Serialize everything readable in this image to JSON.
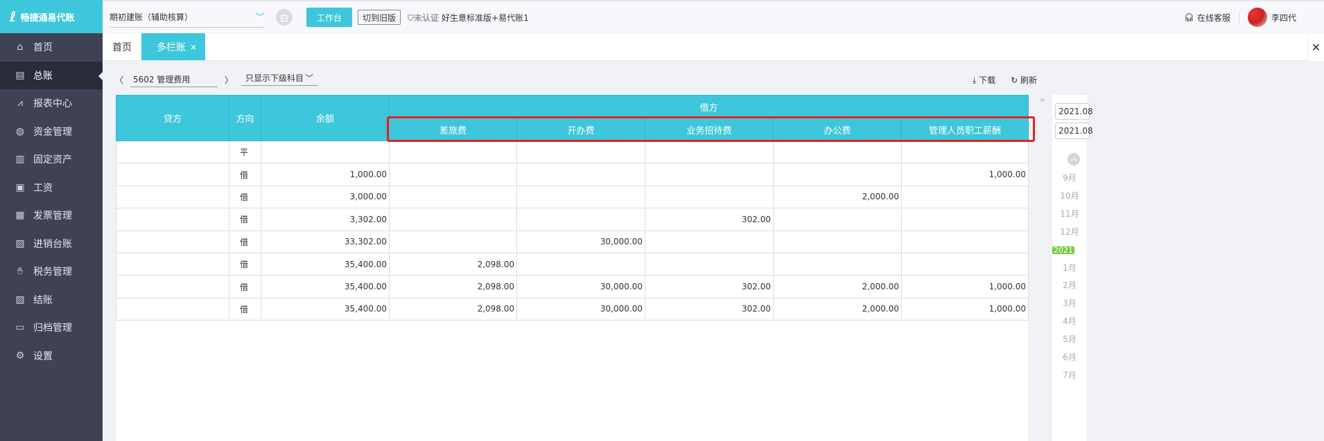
{
  "app": {
    "logo_text": "畅捷通易代账"
  },
  "sidebar": {
    "items": [
      {
        "label": "首页",
        "icon": "home-icon"
      },
      {
        "label": "总账",
        "icon": "ledger-icon",
        "active": true
      },
      {
        "label": "报表中心",
        "icon": "chart-icon"
      },
      {
        "label": "资金管理",
        "icon": "money-bag-icon"
      },
      {
        "label": "固定资产",
        "icon": "building-icon"
      },
      {
        "label": "工资",
        "icon": "salary-icon"
      },
      {
        "label": "发票管理",
        "icon": "invoice-icon"
      },
      {
        "label": "进销台账",
        "icon": "inventory-icon"
      },
      {
        "label": "税务管理",
        "icon": "tax-icon"
      },
      {
        "label": "结账",
        "icon": "close-books-icon"
      },
      {
        "label": "归档管理",
        "icon": "archive-icon"
      },
      {
        "label": "设置",
        "icon": "gear-icon"
      }
    ]
  },
  "header": {
    "account": "期初建账（辅助核算）",
    "circle_label": "白",
    "workbench": "工作台",
    "switch_old": "切到旧版",
    "cert": "未认证",
    "plan": "好生意标准版+易代账1",
    "support": "在线客服",
    "user": "李四代"
  },
  "tabs": [
    {
      "label": "首页"
    },
    {
      "label": "多栏账",
      "close": "×"
    }
  ],
  "toolbar": {
    "subject": "5602  管理费用",
    "filter": "只显示下级科目",
    "download": "下载",
    "refresh": "刷新"
  },
  "table": {
    "headers": {
      "credit": "贷方",
      "direction": "方向",
      "balance": "余额",
      "debit": "借方"
    },
    "debit_columns": [
      "差旅费",
      "开办费",
      "业务招待费",
      "办公费",
      "管理人员职工薪酬"
    ],
    "rows": [
      [
        "",
        "平",
        "",
        "",
        "",
        "",
        "",
        ""
      ],
      [
        "",
        "借",
        "1,000.00",
        "",
        "",
        "",
        "",
        "1,000.00"
      ],
      [
        "",
        "借",
        "3,000.00",
        "",
        "",
        "",
        "2,000.00",
        ""
      ],
      [
        "",
        "借",
        "3,302.00",
        "",
        "",
        "302.00",
        "",
        ""
      ],
      [
        "",
        "借",
        "33,302.00",
        "",
        "30,000.00",
        "",
        "",
        ""
      ],
      [
        "",
        "借",
        "35,400.00",
        "2,098.00",
        "",
        "",
        "",
        ""
      ],
      [
        "",
        "借",
        "35,400.00",
        "2,098.00",
        "30,000.00",
        "302.00",
        "2,000.00",
        "1,000.00"
      ],
      [
        "",
        "借",
        "35,400.00",
        "2,098.00",
        "30,000.00",
        "302.00",
        "2,000.00",
        "1,000.00"
      ]
    ]
  },
  "period": {
    "start": "2021.08",
    "end": "2021.08",
    "months": [
      "9月",
      "10月",
      "11月",
      "12月",
      "2021",
      "1月",
      "2月",
      "3月",
      "4月",
      "5月",
      "6月",
      "7月"
    ]
  },
  "colors": {
    "accent": "#3ec7dc",
    "sidebar": "#3f4154",
    "highlight": "#e8231c"
  }
}
